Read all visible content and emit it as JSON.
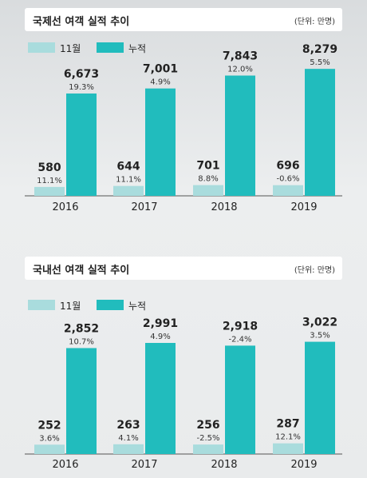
{
  "legend": {
    "monthly": "11월",
    "cumulative": "누적"
  },
  "colors": {
    "monthly": "#a9dcdd",
    "cumulative": "#21bcbd"
  },
  "chart_data": [
    {
      "type": "bar",
      "title": "국제선 여객 실적 추이",
      "unit": "(단위: 만명)",
      "categories": [
        "2016",
        "2017",
        "2018",
        "2019"
      ],
      "ylim": [
        0,
        8600
      ],
      "series": [
        {
          "name": "11월",
          "values": [
            580,
            644,
            701,
            696
          ],
          "labels": [
            "580",
            "644",
            "701",
            "696"
          ],
          "growth": [
            "11.1%",
            "11.1%",
            "8.8%",
            "-0.6%"
          ]
        },
        {
          "name": "누적",
          "values": [
            6673,
            7001,
            7843,
            8279
          ],
          "labels": [
            "6,673",
            "7,001",
            "7,843",
            "8,279"
          ],
          "growth": [
            "19.3%",
            "4.9%",
            "12.0%",
            "5.5%"
          ]
        }
      ]
    },
    {
      "type": "bar",
      "title": "국내선 여객 실적 추이",
      "unit": "(단위: 만명)",
      "categories": [
        "2016",
        "2017",
        "2018",
        "2019"
      ],
      "ylim": [
        0,
        3400
      ],
      "series": [
        {
          "name": "11월",
          "values": [
            252,
            263,
            256,
            287
          ],
          "labels": [
            "252",
            "263",
            "256",
            "287"
          ],
          "growth": [
            "3.6%",
            "4.1%",
            "-2.5%",
            "12.1%"
          ]
        },
        {
          "name": "누적",
          "values": [
            2852,
            2991,
            2918,
            3022
          ],
          "labels": [
            "2,852",
            "2,991",
            "2,918",
            "3,022"
          ],
          "growth": [
            "10.7%",
            "4.9%",
            "-2.4%",
            "3.5%"
          ]
        }
      ]
    }
  ]
}
